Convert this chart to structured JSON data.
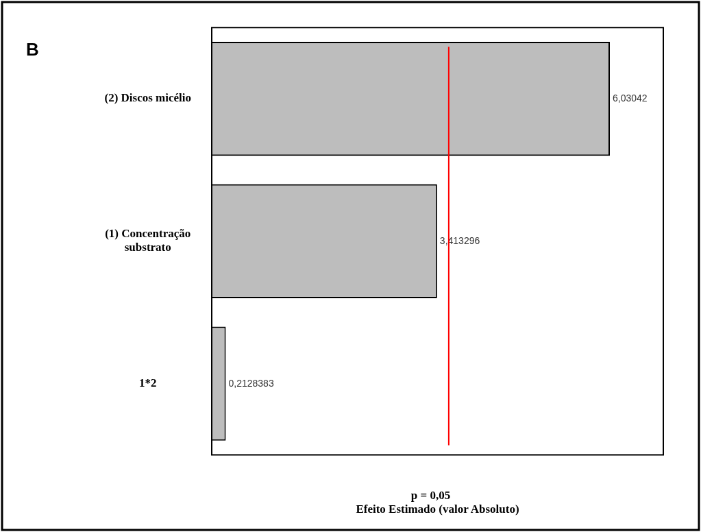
{
  "chart_data": {
    "type": "bar",
    "orientation": "horizontal",
    "title": "B",
    "xlabel": "Efeito Estimado (valor Absoluto)",
    "categories": [
      "(2) Discos micélio",
      "(1) Concentração substrato",
      "1*2"
    ],
    "values": [
      6.03042,
      3.413296,
      0.2128383
    ],
    "value_labels": [
      "6,03042",
      "3,413296",
      "0,2128383"
    ],
    "color": "#bdbdbd",
    "annotations": [
      "p = 0,05"
    ],
    "xlim": [
      0,
      6.84
    ],
    "ref_lines": [
      {
        "axis": "x",
        "value": 3.59,
        "color": "#ff0000"
      }
    ],
    "legend": false
  }
}
